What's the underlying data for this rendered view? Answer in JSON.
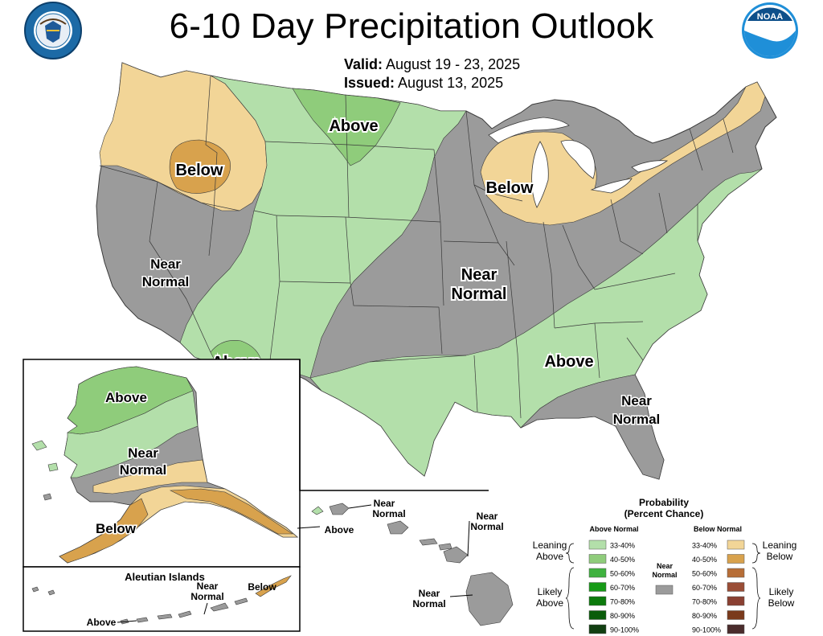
{
  "header": {
    "title": "6-10 Day Precipitation Outlook",
    "valid_label": "Valid:",
    "valid_value": "August 19 - 23, 2025",
    "issued_label": "Issued:",
    "issued_value": "August 13, 2025"
  },
  "logos": {
    "left": "department-of-commerce-seal",
    "right": "noaa-logo",
    "right_text": "NOAA"
  },
  "conus_labels": {
    "nw_below": "Below",
    "west_near_line1": "Near",
    "west_near_line2": "Normal",
    "plains_above": "Above",
    "sw_above": "Above",
    "great_lakes_below": "Below",
    "central_near_line1": "Near",
    "central_near_line2": "Normal",
    "se_above": "Above",
    "se_near_line1": "Near",
    "se_near_line2": "Normal"
  },
  "alaska_labels": {
    "above": "Above",
    "near_line1": "Near",
    "near_line2": "Normal",
    "below": "Below",
    "se_above": "Above"
  },
  "aleutian": {
    "title": "Aleutian Islands",
    "near_line1": "Near",
    "near_line2": "Normal",
    "below": "Below",
    "above": "Above"
  },
  "hawaii_labels": {
    "nw_near_line1": "Near",
    "nw_near_line2": "Normal",
    "ne_near_line1": "Near",
    "ne_near_line2": "Normal",
    "s_near_line1": "Near",
    "s_near_line2": "Normal"
  },
  "legend": {
    "title_line1": "Probability",
    "title_line2": "(Percent Chance)",
    "above_header": "Above Normal",
    "below_header": "Below Normal",
    "near_line1": "Near",
    "near_line2": "Normal",
    "leaning_above_line1": "Leaning",
    "leaning_above_line2": "Above",
    "likely_above_line1": "Likely",
    "likely_above_line2": "Above",
    "leaning_below_line1": "Leaning",
    "leaning_below_line2": "Below",
    "likely_below_line1": "Likely",
    "likely_below_line2": "Below",
    "above_bins": [
      {
        "range": "33-40%",
        "color": "#b3dfaa"
      },
      {
        "range": "40-50%",
        "color": "#8fcc7b"
      },
      {
        "range": "50-60%",
        "color": "#3fb23f"
      },
      {
        "range": "60-70%",
        "color": "#169a16"
      },
      {
        "range": "70-80%",
        "color": "#0c7a0c"
      },
      {
        "range": "80-90%",
        "color": "#0a5c0a"
      },
      {
        "range": "90-100%",
        "color": "#123f12"
      }
    ],
    "below_bins": [
      {
        "range": "33-40%",
        "color": "#f2d597"
      },
      {
        "range": "40-50%",
        "color": "#d8a24d"
      },
      {
        "range": "50-60%",
        "color": "#b76e37"
      },
      {
        "range": "60-70%",
        "color": "#9a4d36"
      },
      {
        "range": "70-80%",
        "color": "#8a4032"
      },
      {
        "range": "80-90%",
        "color": "#7a3a1c"
      },
      {
        "range": "90-100%",
        "color": "#4a2c2c"
      }
    ],
    "near_color": "#9b9b9b"
  },
  "colors": {
    "near_normal": "#9b9b9b",
    "leaning_above": "#b3dfaa",
    "above_40_50": "#8fcc7b",
    "leaning_below": "#f2d597",
    "below_40_50": "#d8a24d",
    "state_border": "#3a3a3a"
  }
}
